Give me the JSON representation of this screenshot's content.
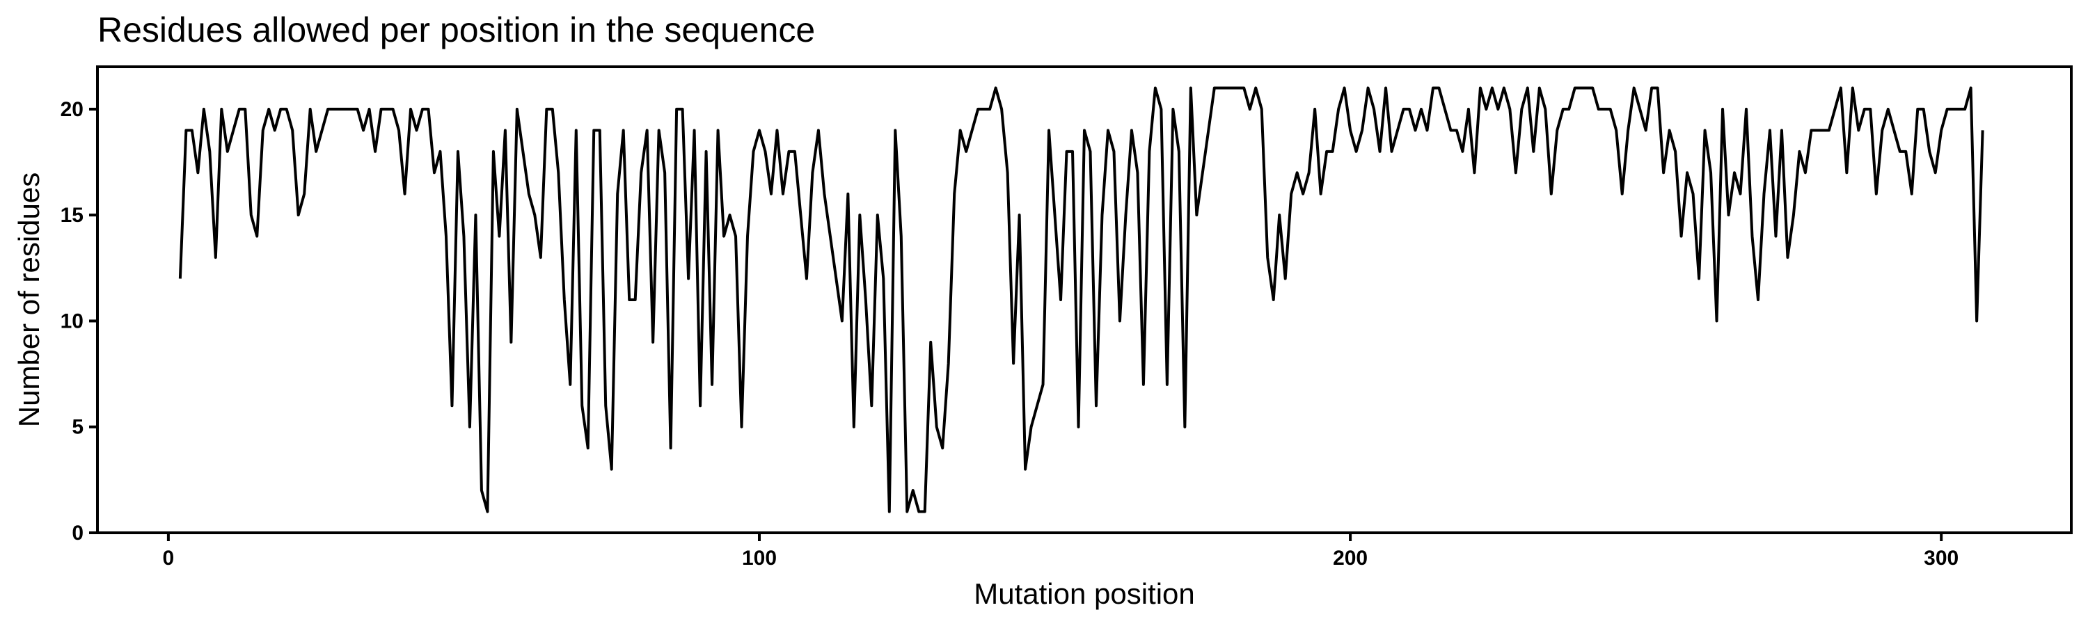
{
  "chart_data": {
    "type": "line",
    "title": "Residues allowed per position in the sequence",
    "xlabel": "Mutation position",
    "ylabel": "Number of residues",
    "xlim": [
      -12,
      322
    ],
    "ylim": [
      0,
      22
    ],
    "xticks": [
      0,
      100,
      200,
      300
    ],
    "yticks": [
      0,
      5,
      10,
      15,
      20
    ],
    "grid": false,
    "line_color": "#000000",
    "series": [
      {
        "x_start": 2,
        "values": [
          12,
          19,
          19,
          17,
          20,
          18,
          13,
          20,
          18,
          19,
          20,
          20,
          15,
          14,
          19,
          20,
          19,
          20,
          20,
          19,
          15,
          16,
          20,
          18,
          19,
          20,
          20,
          20,
          20,
          20,
          20,
          19,
          20,
          18,
          20,
          20,
          20,
          19,
          16,
          20,
          19,
          20,
          20,
          17,
          18,
          14,
          6,
          18,
          14,
          5,
          15,
          2,
          1,
          18,
          14,
          19,
          9,
          20,
          18,
          16,
          15,
          13,
          20,
          20,
          17,
          11,
          7,
          19,
          6,
          4,
          19,
          19,
          6,
          3,
          16,
          19,
          11,
          11,
          17,
          19,
          9,
          19,
          17,
          4,
          20,
          20,
          12,
          19,
          6,
          18,
          7,
          19,
          14,
          15,
          14,
          5,
          14,
          18,
          19,
          18,
          16,
          19,
          16,
          18,
          18,
          15,
          12,
          17,
          19,
          16,
          14,
          12,
          10,
          16,
          5,
          15,
          11,
          6,
          15,
          12,
          1,
          19,
          14,
          1,
          2,
          1,
          1,
          9,
          5,
          4,
          8,
          16,
          19,
          18,
          19,
          20,
          20,
          20,
          21,
          20,
          17,
          8,
          15,
          3,
          5,
          6,
          7,
          19,
          15,
          11,
          18,
          18,
          5,
          19,
          18,
          6,
          15,
          19,
          18,
          10,
          15,
          19,
          17,
          7,
          18,
          21,
          20,
          7,
          20,
          18,
          5,
          21,
          15,
          17,
          19,
          21,
          21,
          21,
          21,
          21,
          21,
          20,
          21,
          20,
          13,
          11,
          15,
          12,
          16,
          17,
          16,
          17,
          20,
          16,
          18,
          18,
          20,
          21,
          19,
          18,
          19,
          21,
          20,
          18,
          21,
          18,
          19,
          20,
          20,
          19,
          20,
          19,
          21,
          21,
          20,
          19,
          19,
          18,
          20,
          17,
          21,
          20,
          21,
          20,
          21,
          20,
          17,
          20,
          21,
          18,
          21,
          20,
          16,
          19,
          20,
          20,
          21,
          21,
          21,
          21,
          20,
          20,
          20,
          19,
          16,
          19,
          21,
          20,
          19,
          21,
          21,
          17,
          19,
          18,
          14,
          17,
          16,
          12,
          19,
          17,
          10,
          20,
          15,
          17,
          16,
          20,
          14,
          11,
          16,
          19,
          14,
          19,
          13,
          15,
          18,
          17,
          19,
          19,
          19,
          19,
          20,
          21,
          17,
          21,
          19,
          20,
          20,
          16,
          19,
          20,
          19,
          18,
          18,
          16,
          20,
          20,
          18,
          17,
          19,
          20,
          20,
          20,
          20,
          21,
          10,
          19
        ]
      }
    ]
  }
}
